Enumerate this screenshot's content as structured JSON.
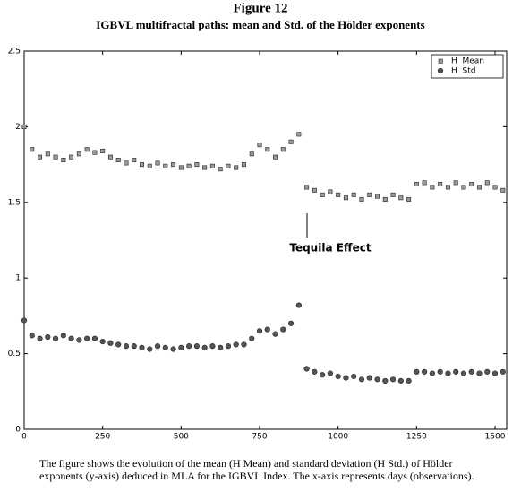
{
  "chart_data": {
    "type": "scatter",
    "title": "Figure 12",
    "subtitle": "IGBVL multifractal paths: mean and Std. of the Hölder exponents",
    "annotation": "Tequila Effect",
    "caption": "The figure shows the evolution of the mean (H Mean) and standard deviation (H Std.) of Hölder exponents (y-axis) deduced in MLA for the IGBVL Index. The x-axis represents days (observations).",
    "x": [
      0,
      25,
      50,
      75,
      100,
      125,
      150,
      175,
      200,
      225,
      250,
      275,
      300,
      325,
      350,
      375,
      400,
      425,
      450,
      475,
      500,
      525,
      550,
      575,
      600,
      625,
      650,
      675,
      700,
      725,
      750,
      775,
      800,
      825,
      850,
      875,
      900,
      925,
      950,
      975,
      1000,
      1025,
      1050,
      1075,
      1100,
      1125,
      1150,
      1175,
      1200,
      1225,
      1250,
      1275,
      1300,
      1325,
      1350,
      1375,
      1400,
      1425,
      1450,
      1475,
      1500,
      1525
    ],
    "series": [
      {
        "name": "H  Mean",
        "color": "#9a9a9a",
        "marker": "square",
        "values": [
          2.0,
          1.85,
          1.8,
          1.82,
          1.8,
          1.78,
          1.8,
          1.82,
          1.85,
          1.83,
          1.84,
          1.8,
          1.78,
          1.76,
          1.78,
          1.75,
          1.74,
          1.76,
          1.74,
          1.75,
          1.73,
          1.74,
          1.75,
          1.73,
          1.74,
          1.72,
          1.74,
          1.73,
          1.75,
          1.82,
          1.88,
          1.85,
          1.8,
          1.85,
          1.9,
          1.95,
          1.6,
          1.58,
          1.55,
          1.57,
          1.55,
          1.53,
          1.55,
          1.52,
          1.55,
          1.54,
          1.52,
          1.55,
          1.53,
          1.52,
          1.62,
          1.63,
          1.6,
          1.62,
          1.6,
          1.63,
          1.6,
          1.62,
          1.6,
          1.63,
          1.6,
          1.58
        ]
      },
      {
        "name": "H  Std",
        "color": "#555555",
        "marker": "circle",
        "values": [
          0.72,
          0.62,
          0.6,
          0.61,
          0.6,
          0.62,
          0.6,
          0.59,
          0.6,
          0.6,
          0.58,
          0.57,
          0.56,
          0.55,
          0.55,
          0.54,
          0.53,
          0.55,
          0.54,
          0.53,
          0.54,
          0.55,
          0.55,
          0.54,
          0.55,
          0.54,
          0.55,
          0.56,
          0.56,
          0.6,
          0.65,
          0.66,
          0.63,
          0.66,
          0.7,
          0.82,
          0.4,
          0.38,
          0.36,
          0.37,
          0.35,
          0.34,
          0.35,
          0.33,
          0.34,
          0.33,
          0.32,
          0.33,
          0.32,
          0.32,
          0.38,
          0.38,
          0.37,
          0.38,
          0.37,
          0.38,
          0.37,
          0.38,
          0.37,
          0.38,
          0.37,
          0.38
        ]
      }
    ],
    "xlim": [
      0,
      1537
    ],
    "ylim": [
      0,
      2.5
    ],
    "xticks": [
      0,
      250,
      500,
      750,
      1000,
      1250,
      1500
    ],
    "yticks": [
      0,
      0.5,
      1,
      1.5,
      2,
      2.5
    ],
    "grid": false,
    "legend": "upper right"
  }
}
